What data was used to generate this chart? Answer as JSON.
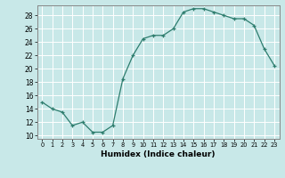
{
  "x": [
    0,
    1,
    2,
    3,
    4,
    5,
    6,
    7,
    8,
    9,
    10,
    11,
    12,
    13,
    14,
    15,
    16,
    17,
    18,
    19,
    20,
    21,
    22,
    23
  ],
  "y": [
    15,
    14,
    13.5,
    11.5,
    12,
    10.5,
    10.5,
    11.5,
    18.5,
    22,
    24.5,
    25,
    25,
    26,
    28.5,
    29,
    29,
    28.5,
    28,
    27.5,
    27.5,
    26.5,
    23,
    20.5
  ],
  "xlabel": "Humidex (Indice chaleur)",
  "xlim": [
    -0.5,
    23.5
  ],
  "ylim": [
    9.5,
    29.5
  ],
  "yticks": [
    10,
    12,
    14,
    16,
    18,
    20,
    22,
    24,
    26,
    28
  ],
  "xticks": [
    0,
    1,
    2,
    3,
    4,
    5,
    6,
    7,
    8,
    9,
    10,
    11,
    12,
    13,
    14,
    15,
    16,
    17,
    18,
    19,
    20,
    21,
    22,
    23
  ],
  "line_color": "#2e7d6e",
  "marker": "+",
  "bg_color": "#c8e8e8",
  "grid_color": "#ffffff",
  "spine_color": "#888888"
}
